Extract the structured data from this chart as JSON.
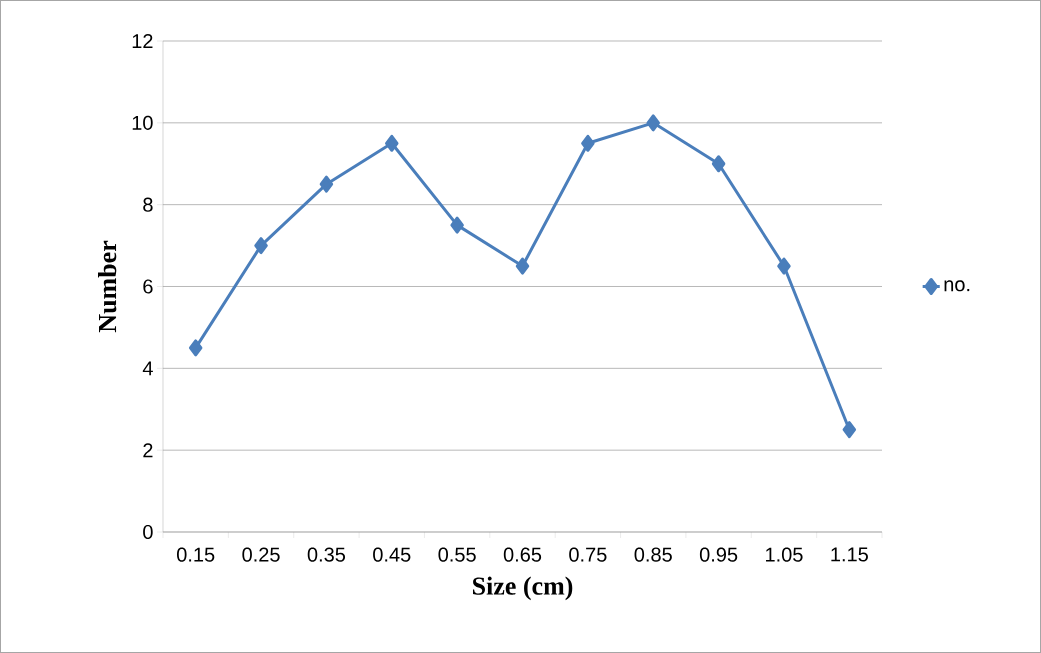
{
  "chart_data": {
    "type": "line",
    "xlabel": "Size (cm)",
    "ylabel": "Number",
    "categories": [
      "0.15",
      "0.25",
      "0.35",
      "0.45",
      "0.55",
      "0.65",
      "0.75",
      "0.85",
      "0.95",
      "1.05",
      "1.15"
    ],
    "series": [
      {
        "name": "no.",
        "color": "#4a7ebb",
        "values": [
          4.5,
          7,
          8.5,
          9.5,
          7.5,
          6.5,
          9.5,
          10,
          9,
          6.5,
          2.5
        ]
      }
    ],
    "ylim": [
      0,
      12
    ],
    "yticks": [
      0,
      2,
      4,
      6,
      8,
      10,
      12
    ],
    "grid": "y",
    "legend": "right",
    "marker": "diamond",
    "line_style": "solid"
  }
}
